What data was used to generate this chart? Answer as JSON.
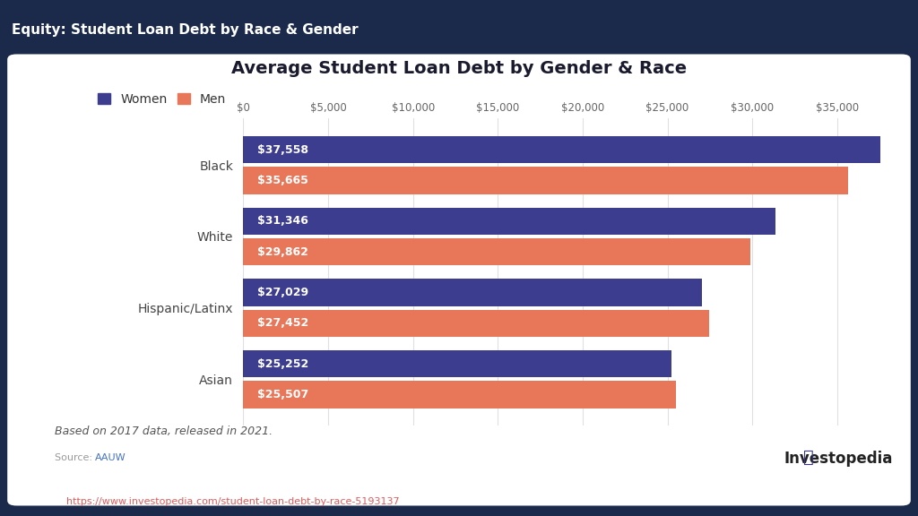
{
  "title": "Average Student Loan Debt by Gender & Race",
  "header": "Equity: Student Loan Debt by Race & Gender",
  "categories": [
    "Black",
    "White",
    "Hispanic/Latinx",
    "Asian"
  ],
  "women_values": [
    37558,
    31346,
    27029,
    25252
  ],
  "men_values": [
    35665,
    29862,
    27452,
    25507
  ],
  "women_color": "#3d3d8f",
  "men_color": "#e8775a",
  "women_label": "Women",
  "men_label": "Men",
  "xlim": [
    0,
    37600
  ],
  "xticks": [
    0,
    5000,
    10000,
    15000,
    20000,
    25000,
    30000,
    35000
  ],
  "note": "Based on 2017 data, released in 2021.",
  "source_label_gray": "Source: ",
  "source_label_blue": "AAUW",
  "source_url": "https://www.investopedia.com/student-loan-debt-by-race-5193137",
  "bg_outer": "#1b2a4a",
  "bg_inner": "#ffffff",
  "bar_height": 0.38,
  "label_fontsize": 9,
  "title_fontsize": 14,
  "header_fontsize": 11,
  "tick_fontsize": 8.5,
  "cat_fontsize": 10,
  "legend_fontsize": 10,
  "note_fontsize": 9,
  "source_fontsize": 8
}
